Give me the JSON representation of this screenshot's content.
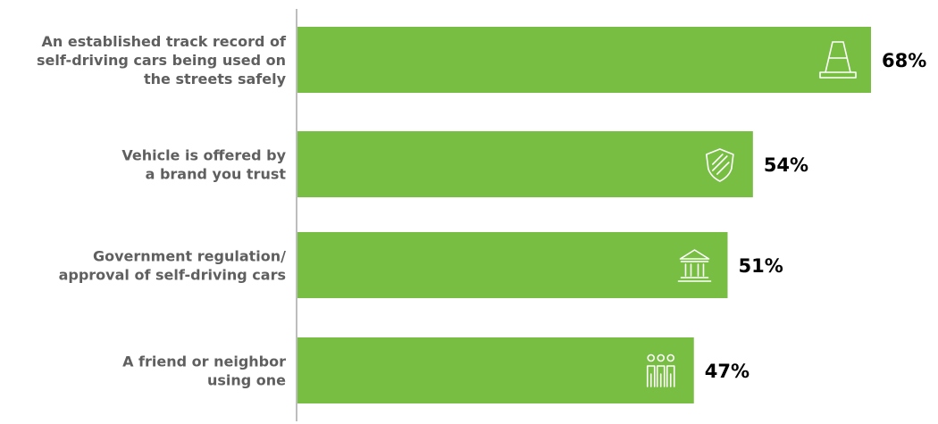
{
  "chart_data": {
    "type": "bar",
    "orientation": "horizontal",
    "title": "",
    "xlabel": "",
    "ylabel": "",
    "xlim": [
      0,
      100
    ],
    "grid": false,
    "legend": "none",
    "bar_color": "#78be43",
    "axis_color": "#bdbdbd",
    "label_color": "#5f5f5f",
    "categories": [
      {
        "lines": [
          "An established track record of",
          "self-driving cars being used on",
          "the streets safely"
        ],
        "value": 68,
        "value_label": "68%",
        "icon": "traffic-cone-icon"
      },
      {
        "lines": [
          "Vehicle is offered by",
          "a brand you trust"
        ],
        "value": 54,
        "value_label": "54%",
        "icon": "shield-icon"
      },
      {
        "lines": [
          "Government regulation/",
          "approval of self-driving cars"
        ],
        "value": 51,
        "value_label": "51%",
        "icon": "government-building-icon"
      },
      {
        "lines": [
          "A friend or neighbor",
          "using one"
        ],
        "value": 47,
        "value_label": "47%",
        "icon": "people-icon"
      }
    ]
  }
}
